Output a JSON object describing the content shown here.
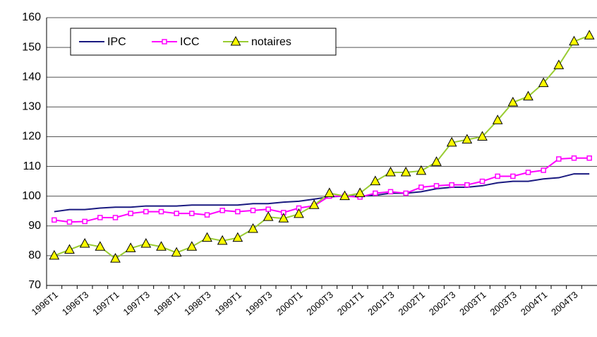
{
  "chart_data": {
    "type": "line",
    "categories": [
      "1996T1",
      null,
      "1996T3",
      null,
      "1997T1",
      null,
      "1997T3",
      null,
      "1998T1",
      null,
      "1998T3",
      null,
      "1999T1",
      null,
      "1999T3",
      null,
      "2000T1",
      null,
      "2000T3",
      null,
      "2001T1",
      null,
      "2001T3",
      null,
      "2002T1",
      null,
      "2002T3",
      null,
      "2003T1",
      null,
      "2003T3",
      null,
      "2004T1",
      null,
      "2004T3",
      null
    ],
    "series": [
      {
        "name": "IPC",
        "color": "#1a1a80",
        "marker": "none",
        "values": [
          94.8,
          95.5,
          95.5,
          96,
          96.3,
          96.3,
          96.7,
          96.7,
          96.7,
          97,
          97,
          97,
          97,
          97.5,
          97.5,
          98,
          98.3,
          99,
          99.8,
          100,
          100,
          100.3,
          101,
          101,
          101.5,
          102.5,
          103,
          103,
          103.5,
          104.5,
          105,
          105,
          105.8,
          106.2,
          107.5,
          107.5
        ]
      },
      {
        "name": "ICC",
        "color": "#ff00ff",
        "marker": "square",
        "values": [
          92,
          91.3,
          91.5,
          92.8,
          92.8,
          94.2,
          94.8,
          94.8,
          94.2,
          94.2,
          93.7,
          95.2,
          94.8,
          95.2,
          95.6,
          94.5,
          96,
          96.8,
          100,
          100,
          99.7,
          101,
          101.5,
          101,
          103,
          103.5,
          103.8,
          103.8,
          105,
          106.7,
          106.7,
          108,
          108.7,
          112.5,
          112.8,
          112.8
        ]
      },
      {
        "name": "notaires",
        "color": "#99cc33",
        "marker": "triangle",
        "values": [
          80,
          82,
          84,
          83,
          79,
          82.5,
          84,
          83,
          81,
          83,
          86,
          85,
          86,
          89,
          93,
          92.5,
          94,
          97,
          101,
          100,
          101,
          105,
          108,
          108,
          108.5,
          111.5,
          118,
          119,
          120,
          125.5,
          131.5,
          133.5,
          138,
          144,
          152,
          154
        ]
      }
    ],
    "ylim": [
      70,
      160
    ],
    "yticks": [
      70,
      80,
      90,
      100,
      110,
      120,
      130,
      140,
      150,
      160
    ],
    "grid": true,
    "legend": "top-left"
  }
}
